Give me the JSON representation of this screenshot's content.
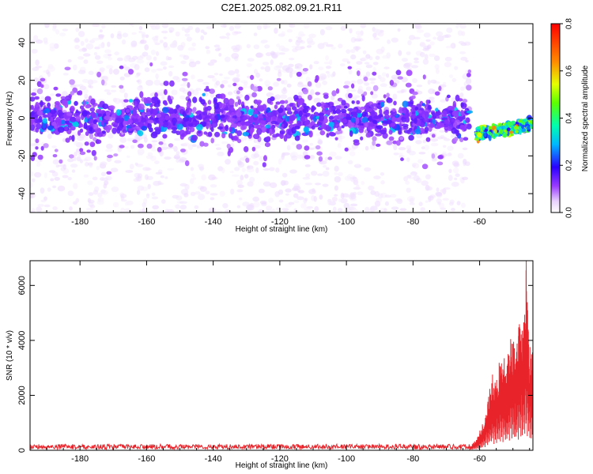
{
  "figure": {
    "title": "C2E1.2025.082.09.21.R11"
  },
  "chart_data": [
    {
      "type": "heatmap",
      "xlabel": "Height of straight line (km)",
      "ylabel": "Frequency (Hz)",
      "xlim": [
        -195,
        -44
      ],
      "ylim": [
        -50,
        50
      ],
      "x_ticks": [
        -180,
        -160,
        -140,
        -120,
        -100,
        -80,
        -60
      ],
      "y_ticks": [
        -40,
        -20,
        0,
        20,
        40
      ],
      "colorbar": {
        "label": "Normalized spectral amplitude",
        "range": [
          0.0,
          0.8
        ],
        "ticks": [
          "0.0",
          "0.2",
          "0.4",
          "0.6",
          "0.8"
        ]
      },
      "bands": [
        {
          "x_start": -195,
          "x_end": -63,
          "center_hz": 0,
          "core_halfwidth_hz": 7,
          "noise_halfwidth_hz": 50,
          "typical_amplitude": 0.1
        },
        {
          "x_start": -61,
          "x_end": -44,
          "center_hz_start": -9,
          "center_hz_end": -3,
          "core_halfwidth_hz": 4,
          "typical_amplitude": 0.45,
          "peak_amplitude": 0.65
        }
      ]
    },
    {
      "type": "line",
      "xlabel": "Height of straight line (km)",
      "ylabel": "SNR (10 * v/v)",
      "xlim": [
        -195,
        -44
      ],
      "ylim": [
        0,
        6900
      ],
      "x_ticks": [
        -180,
        -160,
        -140,
        -120,
        -100,
        -80,
        -60
      ],
      "y_ticks": [
        0,
        2000,
        4000,
        6000
      ],
      "color": "#e8232a",
      "segments": [
        {
          "x_start": -195,
          "x_end": -63,
          "baseline": 130,
          "noise": 90
        },
        {
          "x_start": -63,
          "x_end": -44,
          "points": [
            [
              -63,
              150
            ],
            [
              -61,
              400
            ],
            [
              -60,
              700
            ],
            [
              -59,
              1000
            ],
            [
              -58,
              1500
            ],
            [
              -57,
              2500
            ],
            [
              -56,
              3000
            ],
            [
              -55,
              2600
            ],
            [
              -54,
              3300
            ],
            [
              -53,
              3500
            ],
            [
              -52,
              3300
            ],
            [
              -51,
              4000
            ],
            [
              -50,
              4500
            ],
            [
              -49,
              4200
            ],
            [
              -48,
              5100
            ],
            [
              -47,
              4800
            ],
            [
              -46,
              6900
            ],
            [
              -45,
              4000
            ],
            [
              -44,
              3800
            ]
          ]
        }
      ]
    }
  ]
}
